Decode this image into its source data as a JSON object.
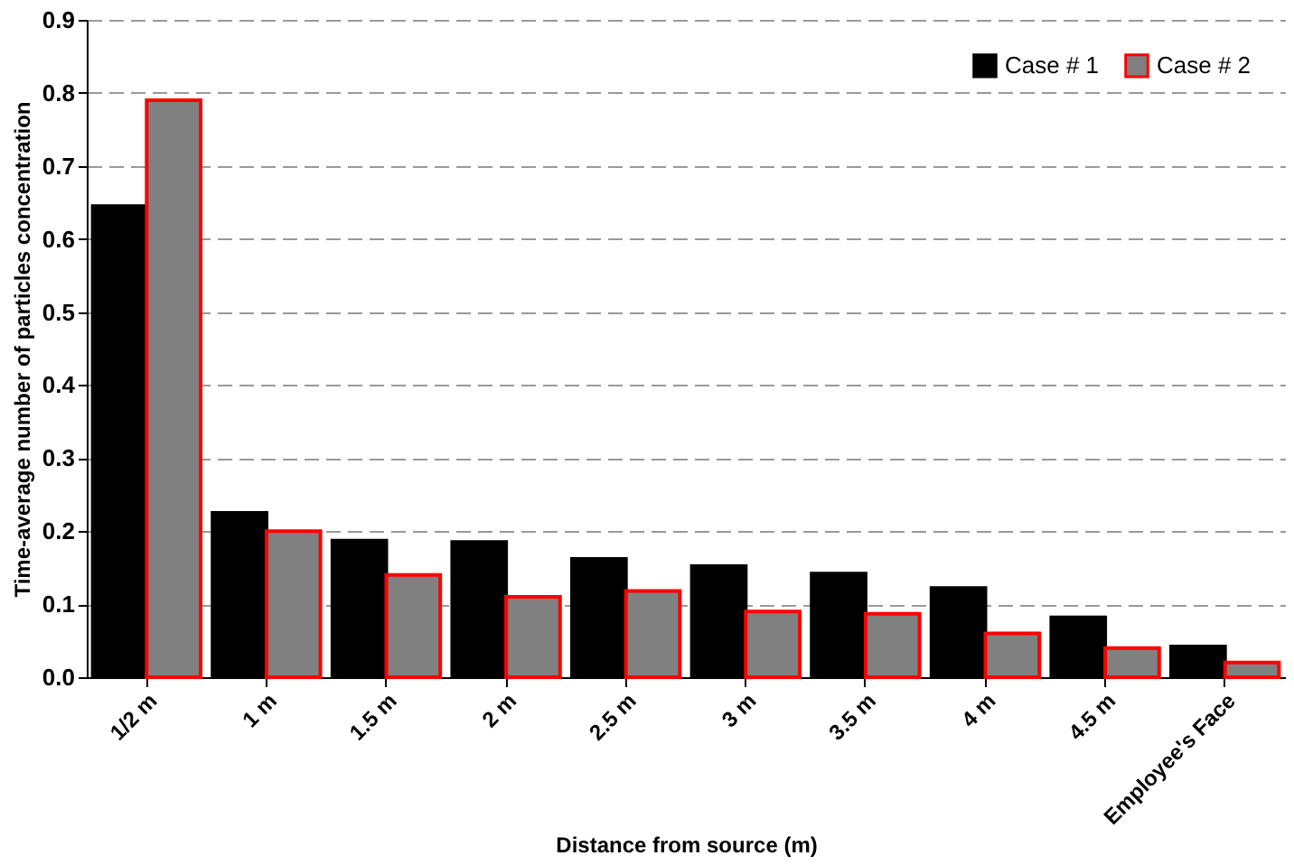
{
  "chart_data": {
    "type": "bar",
    "xlabel": "Distance from source (m)",
    "ylabel": "Time-average number of particles concentration",
    "categories": [
      "1/2 m",
      "1 m",
      "1.5 m",
      "2 m",
      "2.5 m",
      "3 m",
      "3.5 m",
      "4 m",
      "4.5 m",
      "Employee's Face"
    ],
    "series": [
      {
        "name": "Case # 1",
        "color": "#000000",
        "values": [
          0.645,
          0.225,
          0.187,
          0.185,
          0.162,
          0.152,
          0.142,
          0.122,
          0.082,
          0.042
        ]
      },
      {
        "name": "Case # 2",
        "color": "#808080",
        "values": [
          0.79,
          0.2,
          0.14,
          0.11,
          0.118,
          0.09,
          0.087,
          0.06,
          0.04,
          0.02
        ]
      }
    ],
    "ylim": [
      0,
      0.9
    ],
    "yticks": [
      {
        "value": 0,
        "label": "0.0"
      },
      0.1,
      0.2,
      0.3,
      0.4,
      0.5,
      0.6,
      0.7,
      0.8,
      0.9
    ],
    "grid": "y",
    "legend": "top right"
  }
}
